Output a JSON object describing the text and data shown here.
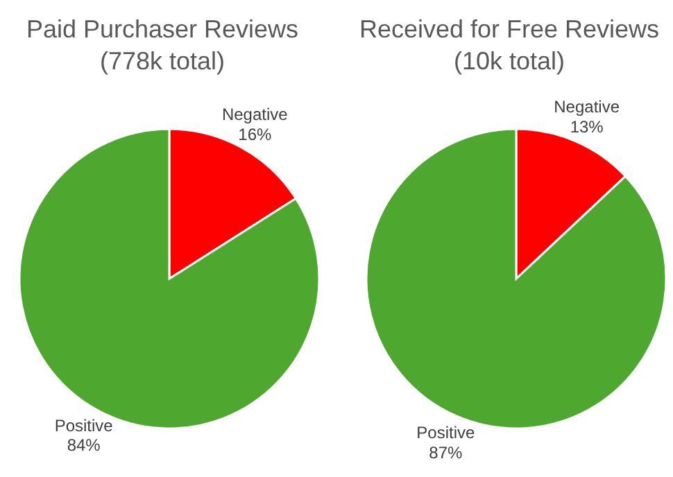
{
  "chart_data": [
    {
      "type": "pie",
      "title": "Paid Purchaser Reviews\n(778k total)",
      "categories": [
        "Negative",
        "Positive"
      ],
      "values": [
        16,
        84
      ],
      "colors": [
        "#ff0000",
        "#4ea72e"
      ],
      "value_labels": [
        "16%",
        "84%"
      ],
      "legend": false
    },
    {
      "type": "pie",
      "title": "Received for Free Reviews\n(10k total)",
      "categories": [
        "Negative",
        "Positive"
      ],
      "values": [
        13,
        87
      ],
      "colors": [
        "#ff0000",
        "#4ea72e"
      ],
      "value_labels": [
        "13%",
        "87%"
      ],
      "legend": false
    }
  ]
}
